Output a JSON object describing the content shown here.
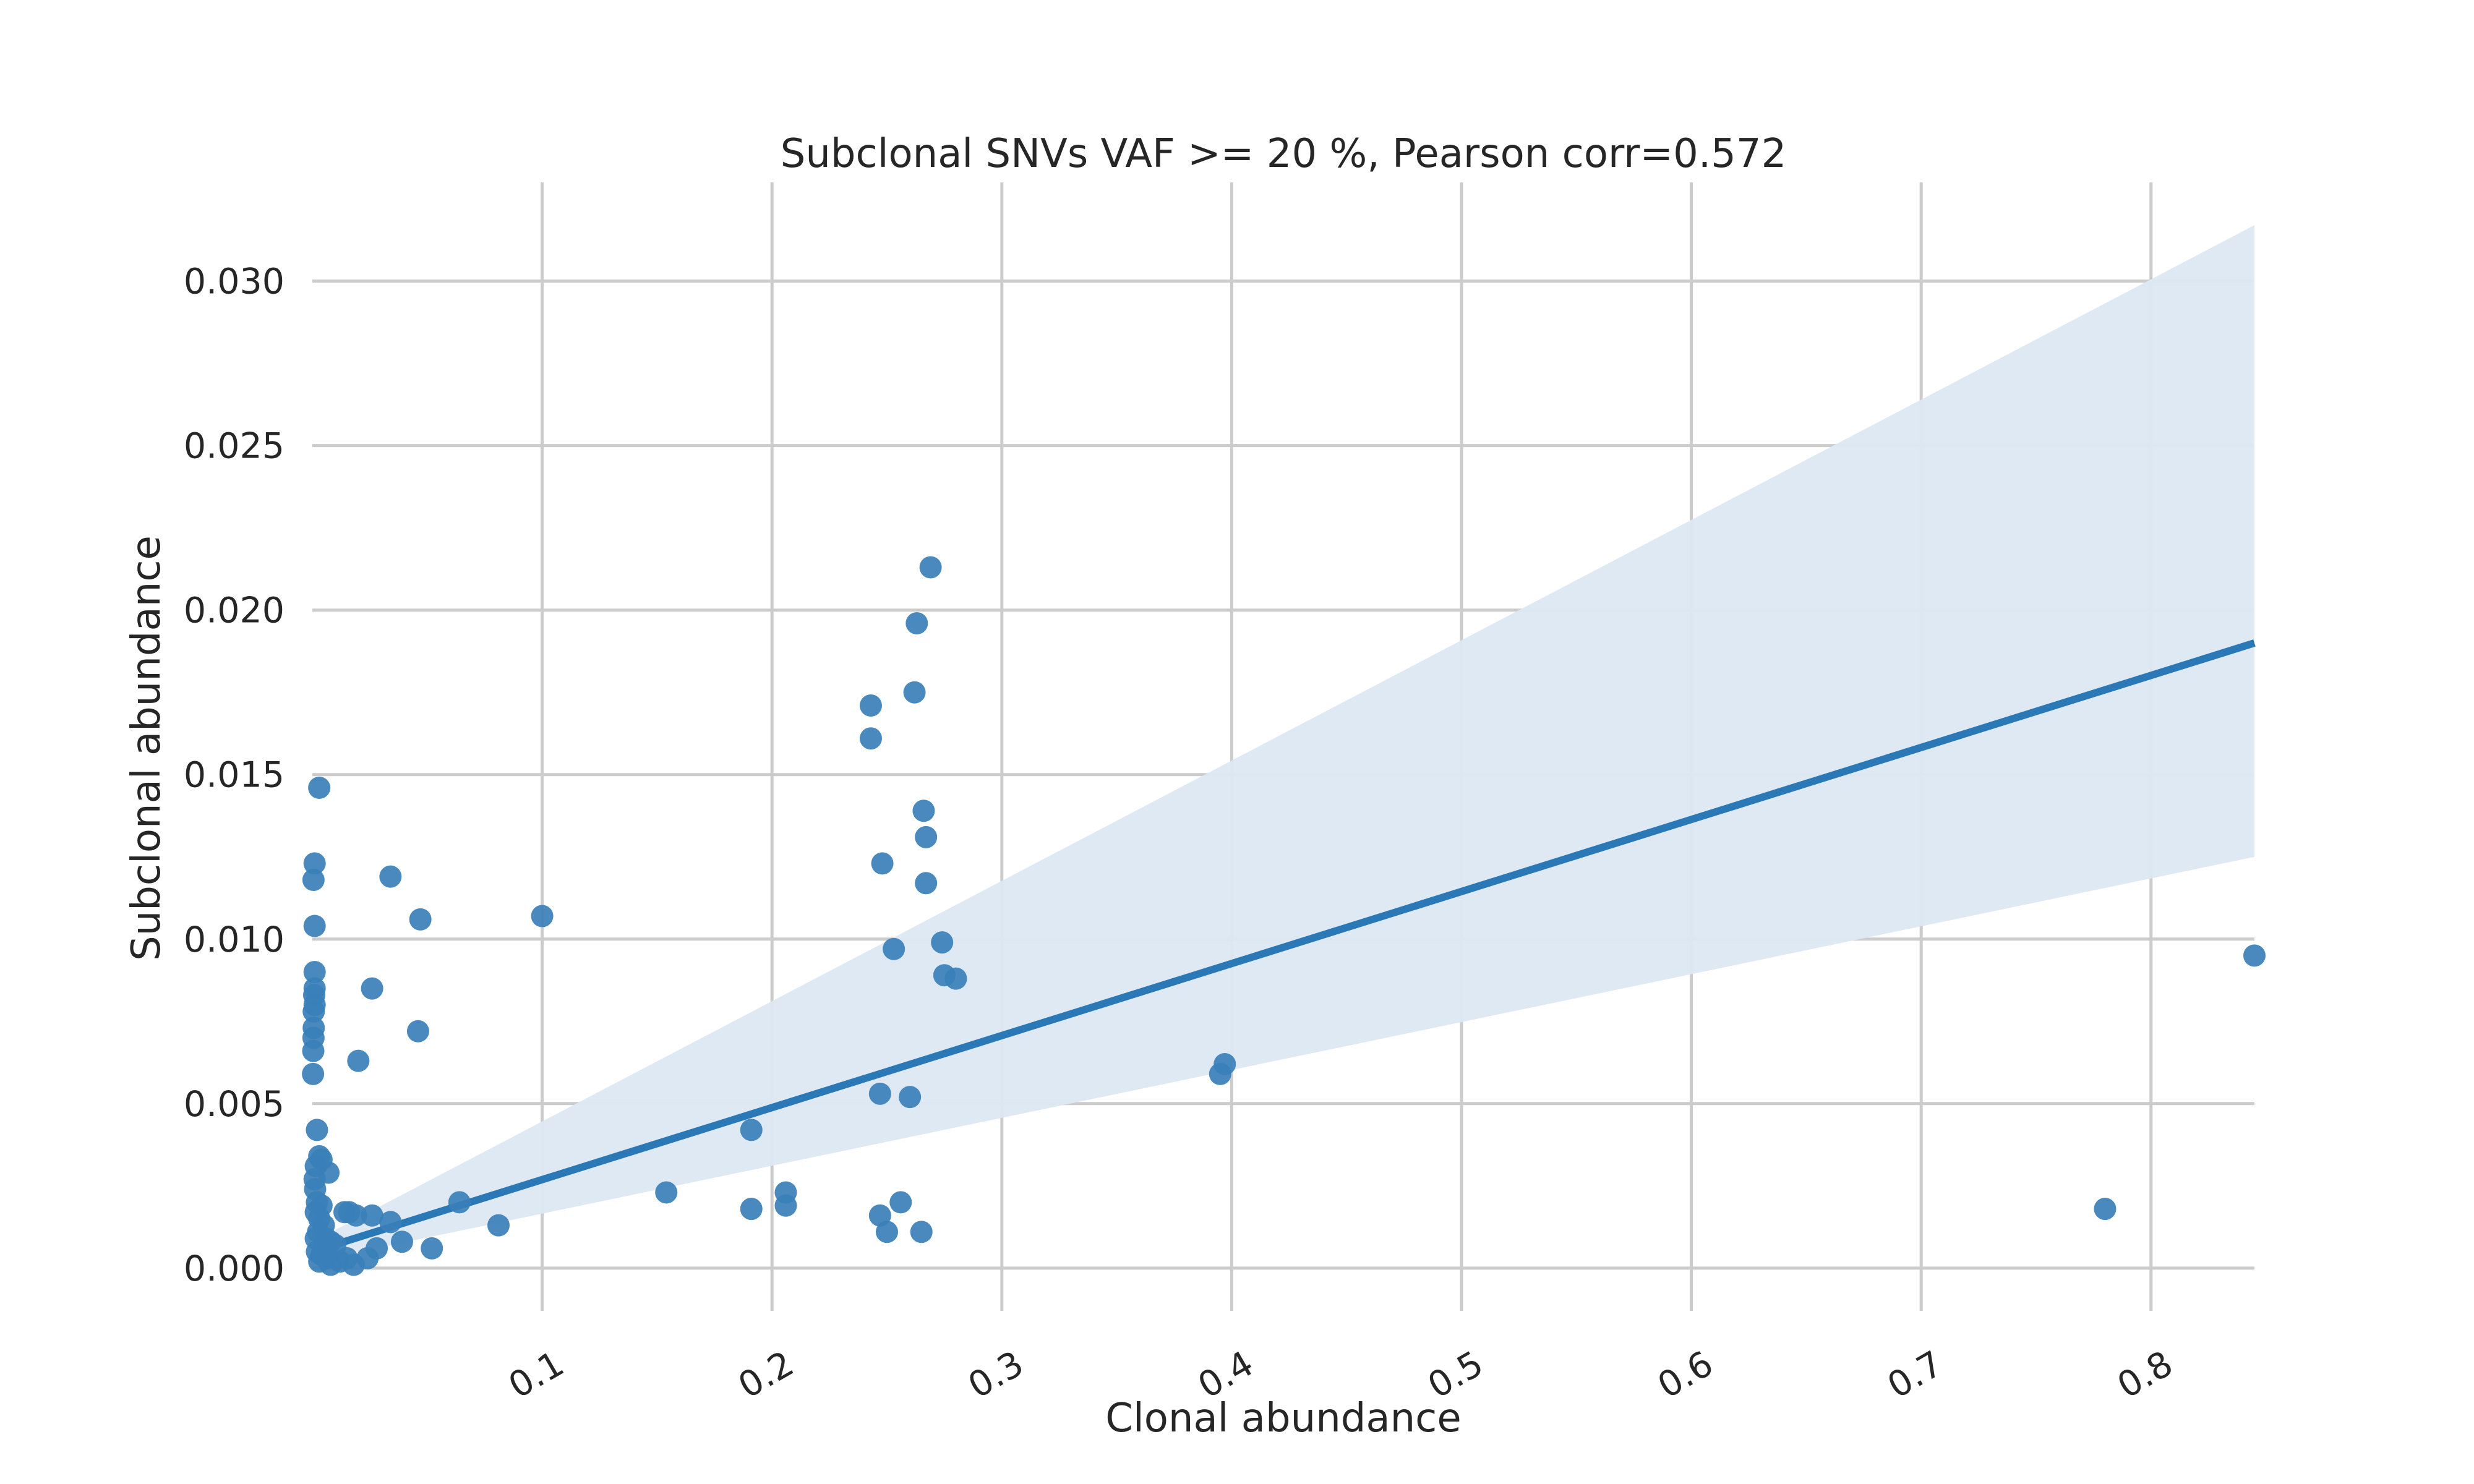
{
  "chart_data": {
    "type": "scatter",
    "title": "Subclonal SNVs VAF >= 20 %,  Pearson corr=0.572",
    "xlabel": "Clonal abundance",
    "ylabel": "Subclonal abundance",
    "xlim": [
      0,
      0.845
    ],
    "ylim": [
      -0.0013,
      0.033
    ],
    "x_ticks": [
      0.1,
      0.2,
      0.3,
      0.4,
      0.5,
      0.6,
      0.7,
      0.8
    ],
    "x_tick_labels": [
      "0.1",
      "0.2",
      "0.3",
      "0.4",
      "0.5",
      "0.6",
      "0.7",
      "0.8"
    ],
    "y_ticks": [
      0.0,
      0.005,
      0.01,
      0.015,
      0.02,
      0.025,
      0.03
    ],
    "y_tick_labels": [
      "0.000",
      "0.005",
      "0.010",
      "0.015",
      "0.020",
      "0.025",
      "0.030"
    ],
    "grid": true,
    "colors": {
      "points": "#3a7fb8",
      "line": "#2a78b5",
      "band": "#dce8f3",
      "grid": "#cccccc"
    },
    "regression": {
      "line": [
        [
          0.0,
          0.0005
        ],
        [
          0.845,
          0.019
        ]
      ],
      "ci_upper": [
        [
          0.0,
          0.0008
        ],
        [
          0.845,
          0.0317
        ]
      ],
      "ci_lower": [
        [
          0.0,
          0.0002
        ],
        [
          0.845,
          0.0125
        ]
      ]
    },
    "points": [
      [
        0.003,
        0.0146
      ],
      [
        0.001,
        0.0123
      ],
      [
        0.0005,
        0.0118
      ],
      [
        0.001,
        0.0104
      ],
      [
        0.001,
        0.009
      ],
      [
        0.001,
        0.0085
      ],
      [
        0.0008,
        0.0083
      ],
      [
        0.001,
        0.008
      ],
      [
        0.0006,
        0.0078
      ],
      [
        0.0006,
        0.0073
      ],
      [
        0.0005,
        0.007
      ],
      [
        0.0004,
        0.0066
      ],
      [
        0.0003,
        0.0059
      ],
      [
        0.002,
        0.0042
      ],
      [
        0.003,
        0.0034
      ],
      [
        0.004,
        0.0033
      ],
      [
        0.0015,
        0.0031
      ],
      [
        0.007,
        0.0029
      ],
      [
        0.001,
        0.0027
      ],
      [
        0.0012,
        0.0024
      ],
      [
        0.002,
        0.002
      ],
      [
        0.004,
        0.0019
      ],
      [
        0.0015,
        0.0017
      ],
      [
        0.003,
        0.0015
      ],
      [
        0.005,
        0.0013
      ],
      [
        0.0025,
        0.0011
      ],
      [
        0.006,
        0.0009
      ],
      [
        0.008,
        0.0008
      ],
      [
        0.01,
        0.0007
      ],
      [
        0.002,
        0.0005
      ],
      [
        0.004,
        0.0004
      ],
      [
        0.006,
        0.0003
      ],
      [
        0.003,
        0.0002
      ],
      [
        0.008,
        0.0001
      ],
      [
        0.012,
        0.0002
      ],
      [
        0.015,
        0.0003
      ],
      [
        0.0015,
        0.0009
      ],
      [
        0.005,
        0.0006
      ],
      [
        0.034,
        0.0119
      ],
      [
        0.047,
        0.0106
      ],
      [
        0.026,
        0.0085
      ],
      [
        0.046,
        0.0072
      ],
      [
        0.02,
        0.0063
      ],
      [
        0.014,
        0.0017
      ],
      [
        0.016,
        0.0017
      ],
      [
        0.019,
        0.0016
      ],
      [
        0.026,
        0.0016
      ],
      [
        0.034,
        0.0014
      ],
      [
        0.039,
        0.0008
      ],
      [
        0.052,
        0.0006
      ],
      [
        0.028,
        0.0006
      ],
      [
        0.024,
        0.0003
      ],
      [
        0.018,
        0.0001
      ],
      [
        0.064,
        0.002
      ],
      [
        0.081,
        0.0013
      ],
      [
        0.1,
        0.0107
      ],
      [
        0.154,
        0.0023
      ],
      [
        0.191,
        0.0042
      ],
      [
        0.191,
        0.0018
      ],
      [
        0.206,
        0.0023
      ],
      [
        0.206,
        0.0019
      ],
      [
        0.243,
        0.0171
      ],
      [
        0.243,
        0.0161
      ],
      [
        0.248,
        0.0123
      ],
      [
        0.247,
        0.0053
      ],
      [
        0.247,
        0.0016
      ],
      [
        0.25,
        0.0011
      ],
      [
        0.253,
        0.0097
      ],
      [
        0.256,
        0.002
      ],
      [
        0.26,
        0.0052
      ],
      [
        0.262,
        0.0175
      ],
      [
        0.263,
        0.0196
      ],
      [
        0.265,
        0.0011
      ],
      [
        0.266,
        0.0139
      ],
      [
        0.267,
        0.0131
      ],
      [
        0.267,
        0.0117
      ],
      [
        0.269,
        0.0213
      ],
      [
        0.274,
        0.0099
      ],
      [
        0.275,
        0.0089
      ],
      [
        0.28,
        0.0088
      ],
      [
        0.395,
        0.0059
      ],
      [
        0.397,
        0.0062
      ],
      [
        0.78,
        0.0018
      ],
      [
        0.845,
        0.0095
      ]
    ]
  }
}
